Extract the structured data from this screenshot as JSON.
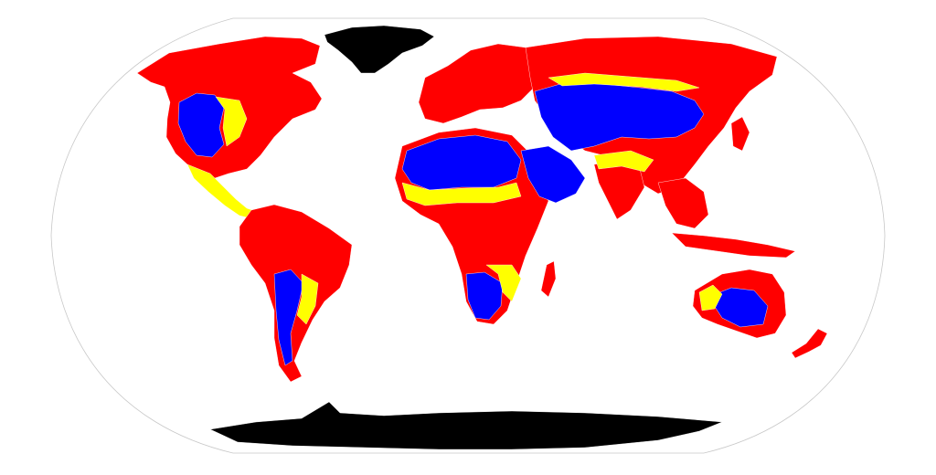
{
  "map": {
    "projection": "robinson",
    "background": "#ffffff",
    "outline_color": "#c8c8c8",
    "border_color": "#ffffff",
    "categories": [
      {
        "id": "red",
        "color": "#ff0000"
      },
      {
        "id": "yellow",
        "color": "#ffff00"
      },
      {
        "id": "blue",
        "color": "#0000ff"
      },
      {
        "id": "ice",
        "color": "#000000"
      }
    ],
    "regions": [
      {
        "name": "greenland",
        "category": "ice"
      },
      {
        "name": "antarctica",
        "category": "ice"
      },
      {
        "name": "north-america",
        "category": "red"
      },
      {
        "name": "central-america",
        "category": "yellow"
      },
      {
        "name": "south-america",
        "category": "red"
      },
      {
        "name": "europe",
        "category": "red"
      },
      {
        "name": "asia",
        "category": "red"
      },
      {
        "name": "africa",
        "category": "red"
      },
      {
        "name": "madagascar",
        "category": "red"
      },
      {
        "name": "arabia",
        "category": "blue"
      },
      {
        "name": "india",
        "category": "red"
      },
      {
        "name": "southeast-asia",
        "category": "red"
      },
      {
        "name": "japan",
        "category": "red"
      },
      {
        "name": "australia",
        "category": "red"
      },
      {
        "name": "new-zealand",
        "category": "red"
      }
    ]
  }
}
